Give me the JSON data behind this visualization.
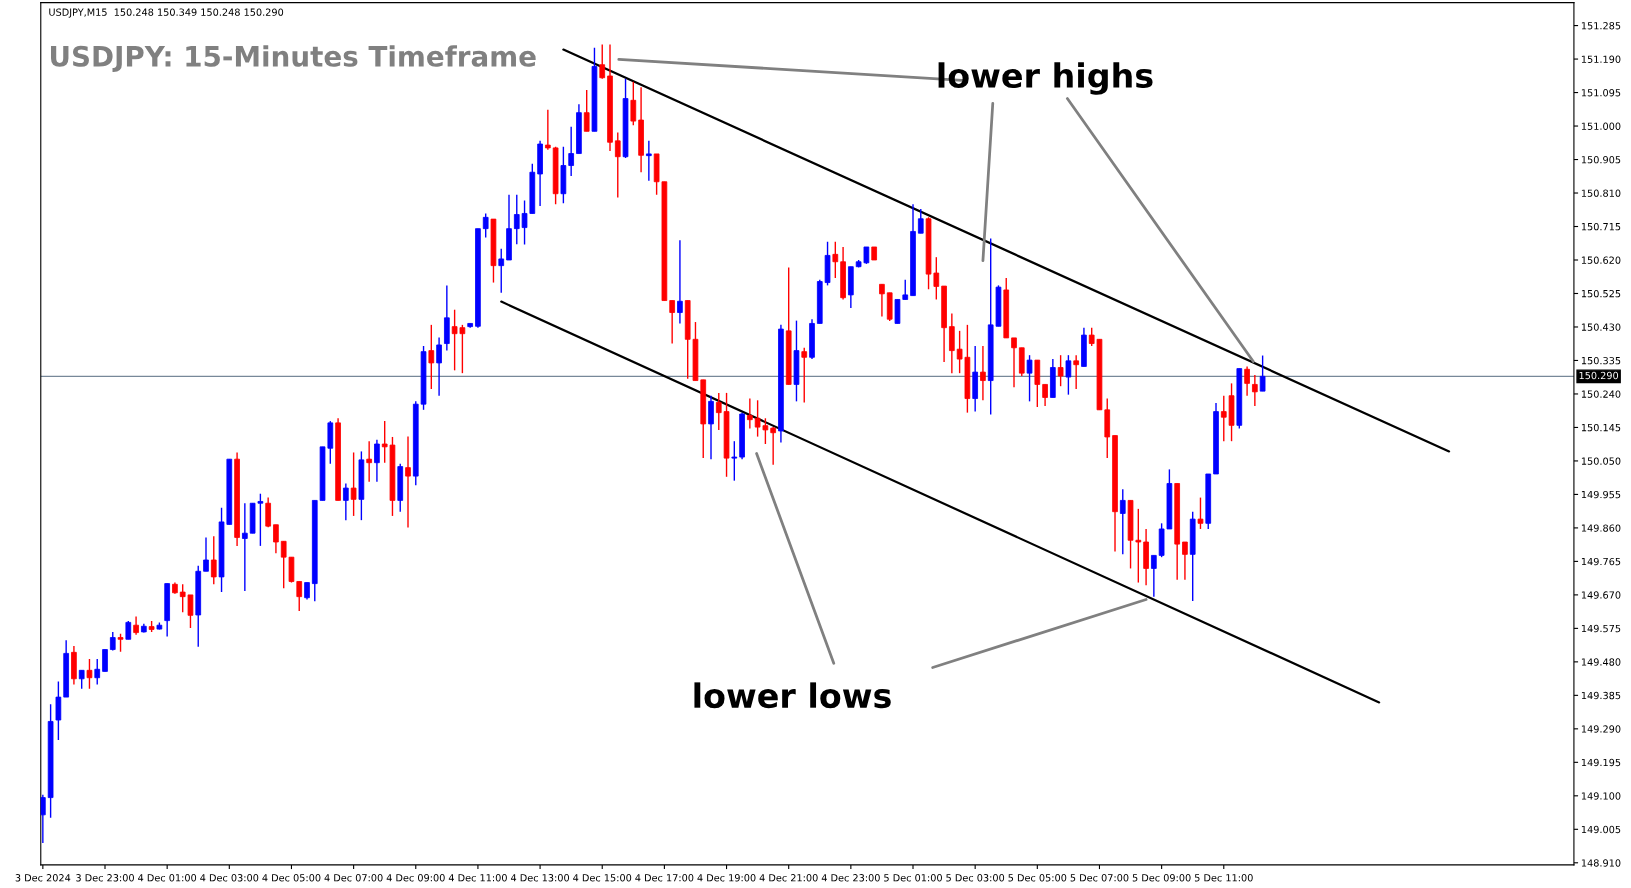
{
  "chart_data": {
    "type": "candlestick",
    "title": "USDJPY: 15-Minutes Timeframe",
    "annotations": [
      "USDJPY,M15  150.248 150.349 150.248 150.290",
      "lower highs",
      "lower lows"
    ],
    "x": [
      "2024-12-03T21:00",
      "2024-12-03T21:15",
      "2024-12-03T21:30",
      "2024-12-03T21:45",
      "2024-12-03T22:00",
      "2024-12-03T22:15",
      "2024-12-03T22:30",
      "2024-12-03T22:45",
      "2024-12-03T23:00",
      "2024-12-03T23:15",
      "2024-12-03T23:30",
      "2024-12-03T23:45",
      "2024-12-04T00:00",
      "2024-12-04T00:15",
      "2024-12-04T00:30",
      "2024-12-04T00:45",
      "2024-12-04T01:00",
      "2024-12-04T01:15",
      "2024-12-04T01:30",
      "2024-12-04T01:45",
      "2024-12-04T02:00",
      "2024-12-04T02:15",
      "2024-12-04T02:30",
      "2024-12-04T02:45",
      "2024-12-04T03:00",
      "2024-12-04T03:15",
      "2024-12-04T03:30",
      "2024-12-04T03:45",
      "2024-12-04T04:00",
      "2024-12-04T04:15",
      "2024-12-04T04:30",
      "2024-12-04T04:45",
      "2024-12-04T05:00",
      "2024-12-04T05:15",
      "2024-12-04T05:30",
      "2024-12-04T05:45",
      "2024-12-04T06:00",
      "2024-12-04T06:15",
      "2024-12-04T06:30",
      "2024-12-04T06:45",
      "2024-12-04T07:00",
      "2024-12-04T07:15",
      "2024-12-04T07:30",
      "2024-12-04T07:45",
      "2024-12-04T08:00",
      "2024-12-04T08:15",
      "2024-12-04T08:30",
      "2024-12-04T08:45",
      "2024-12-04T09:00",
      "2024-12-04T09:15",
      "2024-12-04T09:30",
      "2024-12-04T09:45",
      "2024-12-04T10:00",
      "2024-12-04T10:15",
      "2024-12-04T10:30",
      "2024-12-04T10:45",
      "2024-12-04T11:00",
      "2024-12-04T11:15",
      "2024-12-04T11:30",
      "2024-12-04T11:45",
      "2024-12-04T12:00",
      "2024-12-04T12:15",
      "2024-12-04T12:30",
      "2024-12-04T12:45",
      "2024-12-04T13:00",
      "2024-12-04T13:15",
      "2024-12-04T13:30",
      "2024-12-04T13:45",
      "2024-12-04T14:00",
      "2024-12-04T14:15",
      "2024-12-04T14:30",
      "2024-12-04T14:45",
      "2024-12-04T15:00",
      "2024-12-04T15:15",
      "2024-12-04T15:30",
      "2024-12-04T15:45",
      "2024-12-04T16:00",
      "2024-12-04T16:15",
      "2024-12-04T16:30",
      "2024-12-04T16:45",
      "2024-12-04T17:00",
      "2024-12-04T17:15",
      "2024-12-04T17:30",
      "2024-12-04T17:45",
      "2024-12-04T18:00",
      "2024-12-04T18:15",
      "2024-12-04T18:30",
      "2024-12-04T18:45",
      "2024-12-04T19:00",
      "2024-12-04T19:15",
      "2024-12-04T19:30",
      "2024-12-04T19:45",
      "2024-12-04T20:00",
      "2024-12-04T20:15",
      "2024-12-04T20:30",
      "2024-12-04T20:45",
      "2024-12-04T21:00",
      "2024-12-04T21:15",
      "2024-12-04T21:30",
      "2024-12-04T21:45",
      "2024-12-04T22:00",
      "2024-12-04T22:15",
      "2024-12-04T22:30",
      "2024-12-04T22:45",
      "2024-12-04T23:00",
      "2024-12-04T23:15",
      "2024-12-04T23:30",
      "2024-12-04T23:45",
      "2024-12-05T00:00",
      "2024-12-05T00:15",
      "2024-12-05T00:30",
      "2024-12-05T00:45",
      "2024-12-05T01:00",
      "2024-12-05T01:15",
      "2024-12-05T01:30",
      "2024-12-05T01:45",
      "2024-12-05T02:00",
      "2024-12-05T02:15",
      "2024-12-05T02:30",
      "2024-12-05T02:45",
      "2024-12-05T03:00",
      "2024-12-05T03:15",
      "2024-12-05T03:30",
      "2024-12-05T03:45",
      "2024-12-05T04:00",
      "2024-12-05T04:15",
      "2024-12-05T04:30",
      "2024-12-05T04:45",
      "2024-12-05T05:00",
      "2024-12-05T05:15",
      "2024-12-05T05:30",
      "2024-12-05T05:45",
      "2024-12-05T06:00",
      "2024-12-05T06:15",
      "2024-12-05T06:30",
      "2024-12-05T06:45",
      "2024-12-05T07:00",
      "2024-12-05T07:15",
      "2024-12-05T07:30",
      "2024-12-05T07:45",
      "2024-12-05T08:00",
      "2024-12-05T08:15",
      "2024-12-05T08:30",
      "2024-12-05T08:45",
      "2024-12-05T09:00",
      "2024-12-05T09:15",
      "2024-12-05T09:30",
      "2024-12-05T09:45",
      "2024-12-05T10:00",
      "2024-12-05T10:15",
      "2024-12-05T10:30",
      "2024-12-05T10:45",
      "2024-12-05T11:00",
      "2024-12-05T11:15",
      "2024-12-05T11:30",
      "2024-12-05T11:45",
      "2024-12-05T12:00",
      "2024-12-05T12:15"
    ],
    "ohlc": [
      [
        149.046,
        149.103,
        148.966,
        149.095
      ],
      [
        149.095,
        149.36,
        149.038,
        149.311
      ],
      [
        149.315,
        149.424,
        149.258,
        149.38
      ],
      [
        149.38,
        149.541,
        149.38,
        149.504
      ],
      [
        149.507,
        149.525,
        149.416,
        149.432
      ],
      [
        149.432,
        149.456,
        149.404,
        149.456
      ],
      [
        149.456,
        149.488,
        149.404,
        149.435
      ],
      [
        149.435,
        149.488,
        149.416,
        149.459
      ],
      [
        149.453,
        149.515,
        149.453,
        149.515
      ],
      [
        149.515,
        149.565,
        149.512,
        149.549
      ],
      [
        149.549,
        149.56,
        149.509,
        149.544
      ],
      [
        149.544,
        149.596,
        149.544,
        149.592
      ],
      [
        149.584,
        149.609,
        149.557,
        149.563
      ],
      [
        149.565,
        149.588,
        149.563,
        149.581
      ],
      [
        149.58,
        149.596,
        149.565,
        149.572
      ],
      [
        149.573,
        149.592,
        149.572,
        149.584
      ],
      [
        149.597,
        149.702,
        149.552,
        149.702
      ],
      [
        149.7,
        149.705,
        149.673,
        149.676
      ],
      [
        149.678,
        149.7,
        149.621,
        149.665
      ],
      [
        149.67,
        149.67,
        149.576,
        149.612
      ],
      [
        149.613,
        149.753,
        149.523,
        149.737
      ],
      [
        149.737,
        149.833,
        149.737,
        149.769
      ],
      [
        149.769,
        149.836,
        149.7,
        149.721
      ],
      [
        149.721,
        149.917,
        149.678,
        149.877
      ],
      [
        149.87,
        150.055,
        149.87,
        150.055
      ],
      [
        150.055,
        150.074,
        149.809,
        149.833
      ],
      [
        149.83,
        149.93,
        149.681,
        149.845
      ],
      [
        149.845,
        149.93,
        149.845,
        149.93
      ],
      [
        149.93,
        149.957,
        149.809,
        149.935
      ],
      [
        149.93,
        149.946,
        149.862,
        149.865
      ],
      [
        149.869,
        149.869,
        149.788,
        149.82
      ],
      [
        149.822,
        149.822,
        149.689,
        149.777
      ],
      [
        149.777,
        149.777,
        149.705,
        149.708
      ],
      [
        149.708,
        149.708,
        149.624,
        149.665
      ],
      [
        149.662,
        149.705,
        149.657,
        149.705
      ],
      [
        149.702,
        149.938,
        149.652,
        149.938
      ],
      [
        149.938,
        150.09,
        149.938,
        150.09
      ],
      [
        150.086,
        150.163,
        150.042,
        150.158
      ],
      [
        150.158,
        150.171,
        149.938,
        149.938
      ],
      [
        149.938,
        149.986,
        149.882,
        149.973
      ],
      [
        149.973,
        150.074,
        149.894,
        149.941
      ],
      [
        149.941,
        150.077,
        149.882,
        150.053
      ],
      [
        150.055,
        150.106,
        149.991,
        150.045
      ],
      [
        150.045,
        150.11,
        149.991,
        150.098
      ],
      [
        150.098,
        150.163,
        150.045,
        150.09
      ],
      [
        150.095,
        150.118,
        149.894,
        149.938
      ],
      [
        149.938,
        150.042,
        149.906,
        150.034
      ],
      [
        150.031,
        150.119,
        149.861,
        150.007
      ],
      [
        150.007,
        150.219,
        149.981,
        150.211
      ],
      [
        150.211,
        150.376,
        150.195,
        150.36
      ],
      [
        150.363,
        150.436,
        150.254,
        150.328
      ],
      [
        150.328,
        150.4,
        150.235,
        150.379
      ],
      [
        150.383,
        150.548,
        150.363,
        150.456
      ],
      [
        150.431,
        150.479,
        150.307,
        150.411
      ],
      [
        150.428,
        150.436,
        150.299,
        150.411
      ],
      [
        150.431,
        150.44,
        150.428,
        150.44
      ],
      [
        150.432,
        150.709,
        150.428,
        150.709
      ],
      [
        150.709,
        150.752,
        150.684,
        150.741
      ],
      [
        150.736,
        150.736,
        150.556,
        150.604
      ],
      [
        150.604,
        150.652,
        150.527,
        150.623
      ],
      [
        150.62,
        150.805,
        150.62,
        150.709
      ],
      [
        150.709,
        150.805,
        150.665,
        150.749
      ],
      [
        150.712,
        150.789,
        150.664,
        150.752
      ],
      [
        150.752,
        150.893,
        150.752,
        150.869
      ],
      [
        150.864,
        150.958,
        150.773,
        150.949
      ],
      [
        150.946,
        151.046,
        150.933,
        150.938
      ],
      [
        150.938,
        150.941,
        150.778,
        150.808
      ],
      [
        150.808,
        150.941,
        150.781,
        150.888
      ],
      [
        150.888,
        150.998,
        150.858,
        150.922
      ],
      [
        150.922,
        151.062,
        150.922,
        151.038
      ],
      [
        151.038,
        151.102,
        150.985,
        150.985
      ],
      [
        150.985,
        151.222,
        150.985,
        151.169
      ],
      [
        151.174,
        151.231,
        151.134,
        151.137
      ],
      [
        151.142,
        151.231,
        150.929,
        150.954
      ],
      [
        150.958,
        150.982,
        150.797,
        150.913
      ],
      [
        150.913,
        151.134,
        150.909,
        151.078
      ],
      [
        151.073,
        151.126,
        151.002,
        151.014
      ],
      [
        151.017,
        151.11,
        150.869,
        150.917
      ],
      [
        150.916,
        150.958,
        150.845,
        150.921
      ],
      [
        150.921,
        150.921,
        150.805,
        150.842
      ],
      [
        150.842,
        150.842,
        150.505,
        150.505
      ],
      [
        150.505,
        150.505,
        150.383,
        150.471
      ],
      [
        150.471,
        150.676,
        150.44,
        150.503
      ],
      [
        150.505,
        150.505,
        150.283,
        150.395
      ],
      [
        150.395,
        150.444,
        150.278,
        150.278
      ],
      [
        150.28,
        150.28,
        150.058,
        150.155
      ],
      [
        150.155,
        150.235,
        150.055,
        150.219
      ],
      [
        150.216,
        150.243,
        150.138,
        150.187
      ],
      [
        150.19,
        150.243,
        150.005,
        150.058
      ],
      [
        150.058,
        150.106,
        149.994,
        150.061
      ],
      [
        150.061,
        150.187,
        150.055,
        150.183
      ],
      [
        150.179,
        150.227,
        150.142,
        150.167
      ],
      [
        150.171,
        150.222,
        150.119,
        150.146
      ],
      [
        150.15,
        150.171,
        150.098,
        150.138
      ],
      [
        150.143,
        150.146,
        150.039,
        150.13
      ],
      [
        150.135,
        150.436,
        150.102,
        150.424
      ],
      [
        150.419,
        150.599,
        150.267,
        150.267
      ],
      [
        150.267,
        150.448,
        150.219,
        150.363
      ],
      [
        150.36,
        150.371,
        150.216,
        150.344
      ],
      [
        150.344,
        150.452,
        150.339,
        150.44
      ],
      [
        150.44,
        150.564,
        150.44,
        150.559
      ],
      [
        150.556,
        150.672,
        150.548,
        150.633
      ],
      [
        150.636,
        150.672,
        150.569,
        150.615
      ],
      [
        150.615,
        150.657,
        150.508,
        150.513
      ],
      [
        150.521,
        150.601,
        150.484,
        150.601
      ],
      [
        150.601,
        150.62,
        150.599,
        150.615
      ],
      [
        150.612,
        150.657,
        150.609,
        150.657
      ],
      [
        150.657,
        150.657,
        150.62,
        150.62
      ],
      [
        150.551,
        150.551,
        150.46,
        150.524
      ],
      [
        150.527,
        150.527,
        150.447,
        150.452
      ],
      [
        150.44,
        150.508,
        150.44,
        150.508
      ],
      [
        150.508,
        150.564,
        150.508,
        150.521
      ],
      [
        150.519,
        150.778,
        150.519,
        150.701
      ],
      [
        150.696,
        150.765,
        150.696,
        150.737
      ],
      [
        150.737,
        150.741,
        150.537,
        150.58
      ],
      [
        150.583,
        150.628,
        150.508,
        150.545
      ],
      [
        150.546,
        150.546,
        150.331,
        150.428
      ],
      [
        150.431,
        150.468,
        150.299,
        150.363
      ],
      [
        150.367,
        150.419,
        150.299,
        150.339
      ],
      [
        150.344,
        150.436,
        150.187,
        150.227
      ],
      [
        150.227,
        150.376,
        150.19,
        150.302
      ],
      [
        150.302,
        150.376,
        150.222,
        150.278
      ],
      [
        150.278,
        150.681,
        150.182,
        150.436
      ],
      [
        150.432,
        150.548,
        150.432,
        150.543
      ],
      [
        150.535,
        150.569,
        150.399,
        150.399
      ],
      [
        150.399,
        150.399,
        150.259,
        150.371
      ],
      [
        150.371,
        150.371,
        150.291,
        150.299
      ],
      [
        150.299,
        150.35,
        150.219,
        150.336
      ],
      [
        150.336,
        150.336,
        150.203,
        150.267
      ],
      [
        150.267,
        150.267,
        150.206,
        150.23
      ],
      [
        150.23,
        150.339,
        150.23,
        150.315
      ],
      [
        150.315,
        150.35,
        150.262,
        150.291
      ],
      [
        150.288,
        150.35,
        150.238,
        150.334
      ],
      [
        150.334,
        150.35,
        150.254,
        150.323
      ],
      [
        150.318,
        150.428,
        150.318,
        150.407
      ],
      [
        150.407,
        150.428,
        150.376,
        150.383
      ],
      [
        150.395,
        150.395,
        150.195,
        150.195
      ],
      [
        150.195,
        150.227,
        150.058,
        150.118
      ],
      [
        150.122,
        150.122,
        149.793,
        149.906
      ],
      [
        149.901,
        149.97,
        149.785,
        149.938
      ],
      [
        149.938,
        149.938,
        149.745,
        149.825
      ],
      [
        149.825,
        149.914,
        149.705,
        149.82
      ],
      [
        149.82,
        149.857,
        149.697,
        149.745
      ],
      [
        149.745,
        149.782,
        149.665,
        149.782
      ],
      [
        149.782,
        149.873,
        149.777,
        149.857
      ],
      [
        149.857,
        150.026,
        149.857,
        149.986
      ],
      [
        149.986,
        149.986,
        149.713,
        149.814
      ],
      [
        149.82,
        149.82,
        149.713,
        149.785
      ],
      [
        149.785,
        149.906,
        149.653,
        149.885
      ],
      [
        149.885,
        149.946,
        149.857,
        149.873
      ],
      [
        149.873,
        150.013,
        149.857,
        150.013
      ],
      [
        150.013,
        150.214,
        150.013,
        150.19
      ],
      [
        150.19,
        150.235,
        150.106,
        150.174
      ],
      [
        150.235,
        150.27,
        150.106,
        150.151
      ],
      [
        150.151,
        150.312,
        150.142,
        150.312
      ],
      [
        150.31,
        150.318,
        150.235,
        150.27
      ],
      [
        150.267,
        150.294,
        150.206,
        150.246
      ],
      [
        150.248,
        150.349,
        150.248,
        150.29
      ]
    ],
    "colors": [
      "#0000ff",
      "#0000ff",
      "#0000ff",
      "#0000ff",
      "#ff0000",
      "#0000ff",
      "#ff0000",
      "#0000ff",
      "#0000ff",
      "#0000ff",
      "#ff0000",
      "#0000ff",
      "#ff0000",
      "#0000ff",
      "#ff0000",
      "#0000ff",
      "#0000ff",
      "#ff0000",
      "#ff0000",
      "#ff0000",
      "#0000ff",
      "#0000ff",
      "#ff0000",
      "#0000ff",
      "#0000ff",
      "#ff0000",
      "#0000ff",
      "#0000ff",
      "#0000ff",
      "#ff0000",
      "#ff0000",
      "#ff0000",
      "#ff0000",
      "#ff0000",
      "#0000ff",
      "#0000ff",
      "#0000ff",
      "#0000ff",
      "#ff0000",
      "#0000ff",
      "#ff0000",
      "#0000ff",
      "#ff0000",
      "#0000ff",
      "#ff0000",
      "#ff0000",
      "#0000ff",
      "#ff0000",
      "#0000ff",
      "#0000ff",
      "#ff0000",
      "#0000ff",
      "#0000ff",
      "#ff0000",
      "#ff0000",
      "#0000ff",
      "#0000ff",
      "#0000ff",
      "#ff0000",
      "#0000ff",
      "#0000ff",
      "#0000ff",
      "#0000ff",
      "#0000ff",
      "#0000ff",
      "#ff0000",
      "#ff0000",
      "#0000ff",
      "#0000ff",
      "#0000ff",
      "#ff0000",
      "#0000ff",
      "#ff0000",
      "#ff0000",
      "#ff0000",
      "#0000ff",
      "#ff0000",
      "#ff0000",
      "#0000ff",
      "#ff0000",
      "#ff0000",
      "#ff0000",
      "#0000ff",
      "#ff0000",
      "#ff0000",
      "#ff0000",
      "#0000ff",
      "#ff0000",
      "#ff0000",
      "#0000ff",
      "#0000ff",
      "#ff0000",
      "#ff0000",
      "#ff0000",
      "#ff0000",
      "#0000ff",
      "#ff0000",
      "#0000ff",
      "#ff0000",
      "#0000ff",
      "#0000ff",
      "#0000ff",
      "#ff0000",
      "#ff0000",
      "#0000ff",
      "#0000ff",
      "#0000ff",
      "#ff0000",
      "#ff0000",
      "#ff0000",
      "#0000ff",
      "#0000ff",
      "#0000ff",
      "#0000ff",
      "#ff0000",
      "#ff0000",
      "#ff0000",
      "#ff0000",
      "#ff0000",
      "#ff0000",
      "#0000ff",
      "#ff0000",
      "#0000ff",
      "#0000ff",
      "#ff0000",
      "#ff0000",
      "#ff0000",
      "#0000ff",
      "#ff0000",
      "#ff0000",
      "#0000ff",
      "#ff0000",
      "#0000ff",
      "#ff0000",
      "#0000ff",
      "#ff0000",
      "#ff0000",
      "#ff0000",
      "#ff0000",
      "#0000ff",
      "#ff0000",
      "#ff0000",
      "#ff0000",
      "#0000ff",
      "#0000ff",
      "#0000ff",
      "#ff0000",
      "#ff0000",
      "#0000ff",
      "#ff0000",
      "#0000ff",
      "#0000ff",
      "#ff0000",
      "#ff0000",
      "#0000ff",
      "#ff0000",
      "#ff0000",
      "#0000ff"
    ],
    "series": [
      {
        "type": "line",
        "color": "#000000",
        "x": [
          "2024-12-04T13:45",
          "2024-12-05T18:15"
        ],
        "values": [
          151.217,
          150.077
        ]
      },
      {
        "type": "line",
        "color": "#000000",
        "x": [
          "2024-12-04T11:45",
          "2024-12-05T16:00"
        ],
        "values": [
          150.502,
          149.365
        ]
      },
      {
        "type": "line",
        "color": "#808080",
        "x": [
          "2024-12-05T02:43",
          "2024-12-04T15:32"
        ],
        "values": [
          151.129,
          151.189
        ]
      },
      {
        "type": "line",
        "color": "#808080",
        "x": [
          "2024-12-05T03:34",
          "2024-12-05T03:15"
        ],
        "values": [
          151.064,
          150.618
        ]
      },
      {
        "type": "line",
        "color": "#808080",
        "x": [
          "2024-12-05T05:58",
          "2024-12-05T11:57"
        ],
        "values": [
          151.078,
          150.332
        ]
      },
      {
        "type": "line",
        "color": "#808080",
        "x": [
          "2024-12-04T22:27",
          "2024-12-04T19:58"
        ],
        "values": [
          149.476,
          150.071
        ]
      },
      {
        "type": "line",
        "color": "#808080",
        "x": [
          "2024-12-05T01:38",
          "2024-12-05T08:30"
        ],
        "values": [
          149.464,
          149.657
        ]
      }
    ],
    "ref_lines": [
      {
        "axis": "y",
        "value": 150.29,
        "label": "150.290",
        "color": "#778899"
      }
    ],
    "xlim": [
      "2024-12-03T20:56",
      "2024-12-05T22:16"
    ],
    "xticks": [
      {
        "value": "2024-12-03T21:00",
        "label": "3 Dec 2024"
      },
      {
        "value": "2024-12-03T23:00",
        "label": "3 Dec 23:00"
      },
      {
        "value": "2024-12-04T01:00",
        "label": "4 Dec 01:00"
      },
      {
        "value": "2024-12-04T03:00",
        "label": "4 Dec 03:00"
      },
      {
        "value": "2024-12-04T05:00",
        "label": "4 Dec 05:00"
      },
      {
        "value": "2024-12-04T07:00",
        "label": "4 Dec 07:00"
      },
      {
        "value": "2024-12-04T09:00",
        "label": "4 Dec 09:00"
      },
      {
        "value": "2024-12-04T11:00",
        "label": "4 Dec 11:00"
      },
      {
        "value": "2024-12-04T13:00",
        "label": "4 Dec 13:00"
      },
      {
        "value": "2024-12-04T15:00",
        "label": "4 Dec 15:00"
      },
      {
        "value": "2024-12-04T17:00",
        "label": "4 Dec 17:00"
      },
      {
        "value": "2024-12-04T19:00",
        "label": "4 Dec 19:00"
      },
      {
        "value": "2024-12-04T21:00",
        "label": "4 Dec 21:00"
      },
      {
        "value": "2024-12-04T23:00",
        "label": "4 Dec 23:00"
      },
      {
        "value": "2024-12-05T01:00",
        "label": "5 Dec 01:00"
      },
      {
        "value": "2024-12-05T03:00",
        "label": "5 Dec 03:00"
      },
      {
        "value": "2024-12-05T05:00",
        "label": "5 Dec 05:00"
      },
      {
        "value": "2024-12-05T07:00",
        "label": "5 Dec 07:00"
      },
      {
        "value": "2024-12-05T09:00",
        "label": "5 Dec 09:00"
      },
      {
        "value": "2024-12-05T11:00",
        "label": "5 Dec 11:00"
      }
    ],
    "ylim": [
      148.904,
      151.35
    ],
    "yticks": [
      151.285,
      {
        "value": 151.19,
        "label": "151.190"
      },
      151.095,
      {
        "value": 151.0,
        "label": "151.000"
      },
      150.905,
      {
        "value": 150.81,
        "label": "150.810"
      },
      150.715,
      {
        "value": 150.62,
        "label": "150.620"
      },
      150.525,
      {
        "value": 150.43,
        "label": "150.430"
      },
      150.335,
      {
        "value": 150.24,
        "label": "150.240"
      },
      150.145,
      {
        "value": 150.05,
        "label": "150.050"
      },
      149.955,
      {
        "value": 149.86,
        "label": "149.860"
      },
      149.765,
      {
        "value": 149.67,
        "label": "149.670"
      },
      149.575,
      {
        "value": 149.48,
        "label": "149.480"
      },
      149.385,
      {
        "value": 149.29,
        "label": "149.290"
      },
      149.195,
      {
        "value": 149.1,
        "label": "149.100"
      },
      149.005,
      {
        "value": 148.91,
        "label": "148.910"
      }
    ],
    "grid": false
  }
}
